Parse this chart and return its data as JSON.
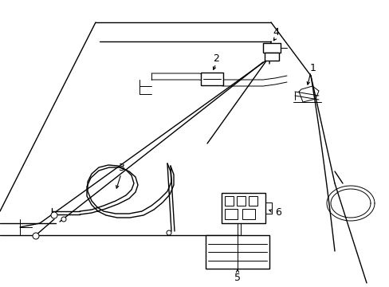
{
  "bg_color": "#ffffff",
  "line_color": "#000000",
  "lw": 1.0,
  "tlw": 0.7,
  "fig_width": 4.89,
  "fig_height": 3.6,
  "dpi": 100
}
